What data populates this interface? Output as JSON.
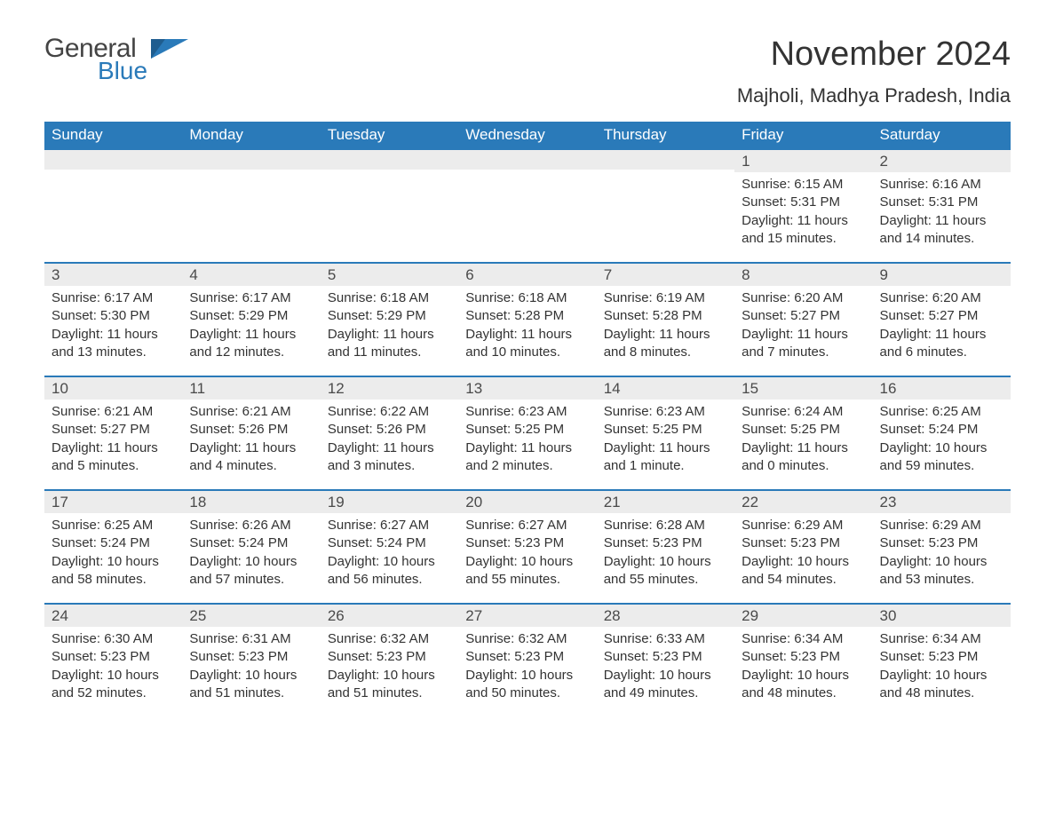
{
  "logo": {
    "general": "General",
    "blue": "Blue"
  },
  "title": "November 2024",
  "location": "Majholi, Madhya Pradesh, India",
  "colors": {
    "header_bg": "#2a7ab9",
    "header_text": "#ffffff",
    "day_num_bg": "#ececec",
    "border_top": "#2a7ab9",
    "body_text": "#333333",
    "page_bg": "#ffffff"
  },
  "weekdays": [
    "Sunday",
    "Monday",
    "Tuesday",
    "Wednesday",
    "Thursday",
    "Friday",
    "Saturday"
  ],
  "weeks": [
    [
      null,
      null,
      null,
      null,
      null,
      {
        "n": "1",
        "sunrise": "Sunrise: 6:15 AM",
        "sunset": "Sunset: 5:31 PM",
        "daylight": "Daylight: 11 hours and 15 minutes."
      },
      {
        "n": "2",
        "sunrise": "Sunrise: 6:16 AM",
        "sunset": "Sunset: 5:31 PM",
        "daylight": "Daylight: 11 hours and 14 minutes."
      }
    ],
    [
      {
        "n": "3",
        "sunrise": "Sunrise: 6:17 AM",
        "sunset": "Sunset: 5:30 PM",
        "daylight": "Daylight: 11 hours and 13 minutes."
      },
      {
        "n": "4",
        "sunrise": "Sunrise: 6:17 AM",
        "sunset": "Sunset: 5:29 PM",
        "daylight": "Daylight: 11 hours and 12 minutes."
      },
      {
        "n": "5",
        "sunrise": "Sunrise: 6:18 AM",
        "sunset": "Sunset: 5:29 PM",
        "daylight": "Daylight: 11 hours and 11 minutes."
      },
      {
        "n": "6",
        "sunrise": "Sunrise: 6:18 AM",
        "sunset": "Sunset: 5:28 PM",
        "daylight": "Daylight: 11 hours and 10 minutes."
      },
      {
        "n": "7",
        "sunrise": "Sunrise: 6:19 AM",
        "sunset": "Sunset: 5:28 PM",
        "daylight": "Daylight: 11 hours and 8 minutes."
      },
      {
        "n": "8",
        "sunrise": "Sunrise: 6:20 AM",
        "sunset": "Sunset: 5:27 PM",
        "daylight": "Daylight: 11 hours and 7 minutes."
      },
      {
        "n": "9",
        "sunrise": "Sunrise: 6:20 AM",
        "sunset": "Sunset: 5:27 PM",
        "daylight": "Daylight: 11 hours and 6 minutes."
      }
    ],
    [
      {
        "n": "10",
        "sunrise": "Sunrise: 6:21 AM",
        "sunset": "Sunset: 5:27 PM",
        "daylight": "Daylight: 11 hours and 5 minutes."
      },
      {
        "n": "11",
        "sunrise": "Sunrise: 6:21 AM",
        "sunset": "Sunset: 5:26 PM",
        "daylight": "Daylight: 11 hours and 4 minutes."
      },
      {
        "n": "12",
        "sunrise": "Sunrise: 6:22 AM",
        "sunset": "Sunset: 5:26 PM",
        "daylight": "Daylight: 11 hours and 3 minutes."
      },
      {
        "n": "13",
        "sunrise": "Sunrise: 6:23 AM",
        "sunset": "Sunset: 5:25 PM",
        "daylight": "Daylight: 11 hours and 2 minutes."
      },
      {
        "n": "14",
        "sunrise": "Sunrise: 6:23 AM",
        "sunset": "Sunset: 5:25 PM",
        "daylight": "Daylight: 11 hours and 1 minute."
      },
      {
        "n": "15",
        "sunrise": "Sunrise: 6:24 AM",
        "sunset": "Sunset: 5:25 PM",
        "daylight": "Daylight: 11 hours and 0 minutes."
      },
      {
        "n": "16",
        "sunrise": "Sunrise: 6:25 AM",
        "sunset": "Sunset: 5:24 PM",
        "daylight": "Daylight: 10 hours and 59 minutes."
      }
    ],
    [
      {
        "n": "17",
        "sunrise": "Sunrise: 6:25 AM",
        "sunset": "Sunset: 5:24 PM",
        "daylight": "Daylight: 10 hours and 58 minutes."
      },
      {
        "n": "18",
        "sunrise": "Sunrise: 6:26 AM",
        "sunset": "Sunset: 5:24 PM",
        "daylight": "Daylight: 10 hours and 57 minutes."
      },
      {
        "n": "19",
        "sunrise": "Sunrise: 6:27 AM",
        "sunset": "Sunset: 5:24 PM",
        "daylight": "Daylight: 10 hours and 56 minutes."
      },
      {
        "n": "20",
        "sunrise": "Sunrise: 6:27 AM",
        "sunset": "Sunset: 5:23 PM",
        "daylight": "Daylight: 10 hours and 55 minutes."
      },
      {
        "n": "21",
        "sunrise": "Sunrise: 6:28 AM",
        "sunset": "Sunset: 5:23 PM",
        "daylight": "Daylight: 10 hours and 55 minutes."
      },
      {
        "n": "22",
        "sunrise": "Sunrise: 6:29 AM",
        "sunset": "Sunset: 5:23 PM",
        "daylight": "Daylight: 10 hours and 54 minutes."
      },
      {
        "n": "23",
        "sunrise": "Sunrise: 6:29 AM",
        "sunset": "Sunset: 5:23 PM",
        "daylight": "Daylight: 10 hours and 53 minutes."
      }
    ],
    [
      {
        "n": "24",
        "sunrise": "Sunrise: 6:30 AM",
        "sunset": "Sunset: 5:23 PM",
        "daylight": "Daylight: 10 hours and 52 minutes."
      },
      {
        "n": "25",
        "sunrise": "Sunrise: 6:31 AM",
        "sunset": "Sunset: 5:23 PM",
        "daylight": "Daylight: 10 hours and 51 minutes."
      },
      {
        "n": "26",
        "sunrise": "Sunrise: 6:32 AM",
        "sunset": "Sunset: 5:23 PM",
        "daylight": "Daylight: 10 hours and 51 minutes."
      },
      {
        "n": "27",
        "sunrise": "Sunrise: 6:32 AM",
        "sunset": "Sunset: 5:23 PM",
        "daylight": "Daylight: 10 hours and 50 minutes."
      },
      {
        "n": "28",
        "sunrise": "Sunrise: 6:33 AM",
        "sunset": "Sunset: 5:23 PM",
        "daylight": "Daylight: 10 hours and 49 minutes."
      },
      {
        "n": "29",
        "sunrise": "Sunrise: 6:34 AM",
        "sunset": "Sunset: 5:23 PM",
        "daylight": "Daylight: 10 hours and 48 minutes."
      },
      {
        "n": "30",
        "sunrise": "Sunrise: 6:34 AM",
        "sunset": "Sunset: 5:23 PM",
        "daylight": "Daylight: 10 hours and 48 minutes."
      }
    ]
  ]
}
